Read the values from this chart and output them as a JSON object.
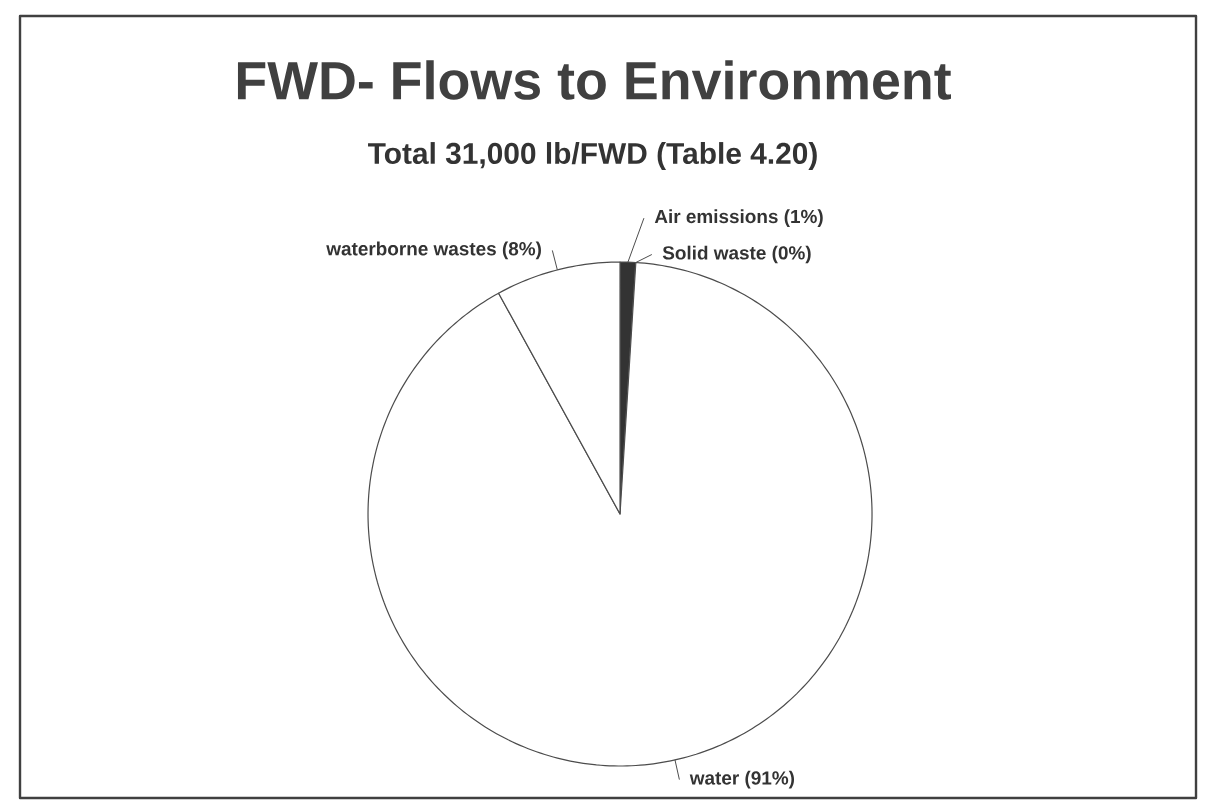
{
  "chart_data": {
    "type": "pie",
    "title": "FWD- Flows to Environment",
    "subtitle": "Total 31,000 lb/FWD (Table 4.20)",
    "categories": [
      "Air emissions (1%)",
      "Solid waste (0%)",
      "water (91%)",
      "waterborne wastes (8%)"
    ],
    "values": [
      1,
      0,
      91,
      8
    ],
    "colors": [
      "#333333",
      "#ffffff",
      "#ffffff",
      "#ffffff"
    ]
  }
}
